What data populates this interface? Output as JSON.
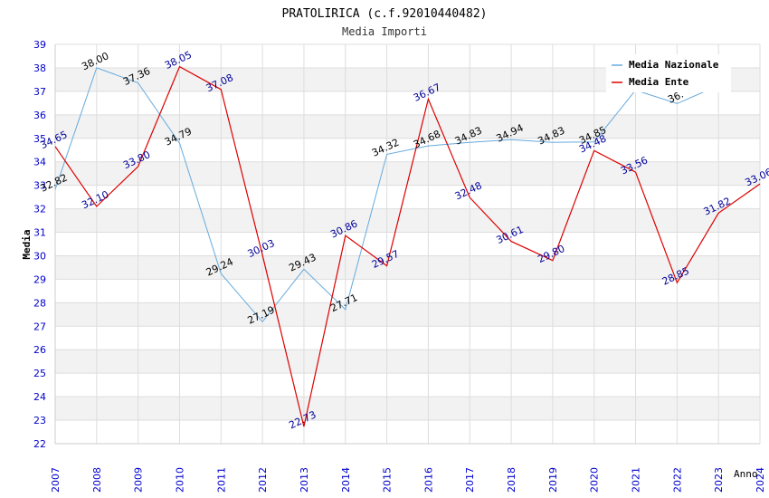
{
  "chart_data": {
    "type": "line",
    "title": "PRATOLIRICA (c.f.92010440482)",
    "subtitle": "Media Importi",
    "xlabel": "Anno",
    "ylabel": "Media",
    "ylim": [
      22,
      39
    ],
    "yticks": [
      22,
      23,
      24,
      25,
      26,
      27,
      28,
      29,
      30,
      31,
      32,
      33,
      34,
      35,
      36,
      37,
      38,
      39
    ],
    "categories": [
      "2007",
      "2008",
      "2009",
      "2010",
      "2011",
      "2012",
      "2013",
      "2014",
      "2015",
      "2016",
      "2017",
      "2018",
      "2019",
      "2020",
      "2021",
      "2022",
      "2023",
      "2024"
    ],
    "grid": true,
    "legend_position": "top-right",
    "series": [
      {
        "name": "Media Nazionale",
        "color": "#66aadd",
        "label_color": "#000000",
        "values": [
          32.82,
          38.0,
          37.36,
          34.79,
          29.24,
          27.19,
          29.43,
          27.71,
          34.32,
          34.68,
          34.83,
          34.94,
          34.83,
          34.85,
          37.05,
          36.48,
          37.25,
          null
        ],
        "labels": [
          "32.82",
          "38.00",
          "37.36",
          "34.79",
          "29.24",
          "27.19",
          "29.43",
          "27.71",
          "34.32",
          "34.68",
          "34.83",
          "34.94",
          "34.83",
          "34.85",
          "",
          "36.",
          "",
          ""
        ]
      },
      {
        "name": "Media Ente",
        "color": "#dd0000",
        "label_color": "#000099",
        "values": [
          34.65,
          32.1,
          33.8,
          38.05,
          37.08,
          30.03,
          22.73,
          30.86,
          29.57,
          36.67,
          32.48,
          30.61,
          29.8,
          34.48,
          33.56,
          28.85,
          31.82,
          33.06
        ],
        "labels": [
          "34.65",
          "32.10",
          "33.80",
          "38.05",
          "37.08",
          "30.03",
          "22.73",
          "30.86",
          "29.57",
          "36.67",
          "32.48",
          "30.61",
          "29.80",
          "34.48",
          "33.56",
          "28.85",
          "31.82",
          "33.06"
        ]
      }
    ]
  },
  "colors": {
    "axis_tick_text": "#0000cc",
    "band_fill": "#f2f2f2",
    "grid_line": "#dddddd",
    "axis_line": "#cccccc"
  }
}
